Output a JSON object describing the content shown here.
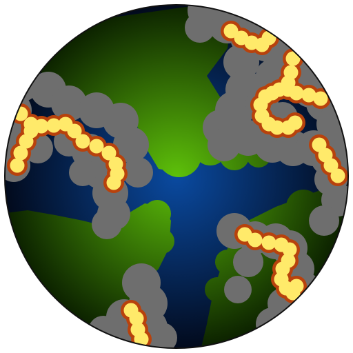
{
  "scene": {
    "kind": "planet-map",
    "colors": {
      "background": "#ffffff",
      "ocean_center": "#0a4aa0",
      "ocean_edge": "#020a1c",
      "land_center": "#5ec10a",
      "land_edge": "#0c2200",
      "rock": "#6e6e6e",
      "lava_rim": "#b8420c",
      "lava_core": "#ffea6a",
      "outline": "#111111"
    }
  }
}
